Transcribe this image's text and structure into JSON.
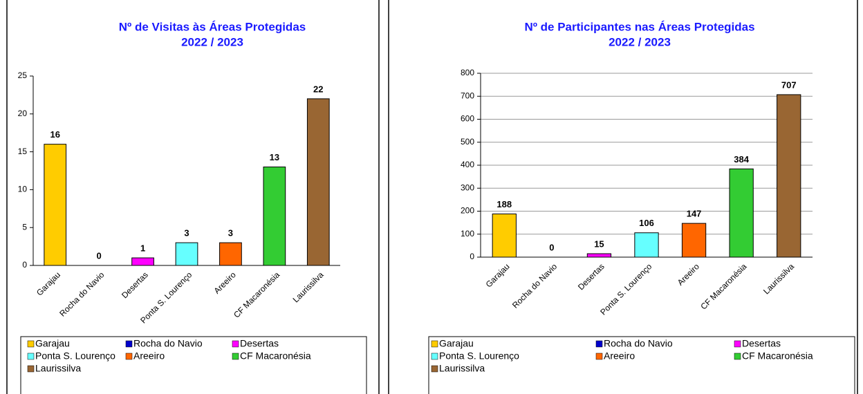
{
  "chart_data": [
    {
      "type": "bar",
      "title": "Nº de Visitas às Áreas Protegidas",
      "subtitle": "2022 / 2023",
      "categories": [
        "Garajau",
        "Rocha do Navio",
        "Desertas",
        "Ponta S. Lourenço",
        "Areeiro",
        "CF Macaronésia",
        "Laurissilva"
      ],
      "values": [
        16,
        0,
        1,
        3,
        3,
        13,
        22
      ],
      "colors": [
        "#ffcc00",
        "#0000cc",
        "#ff00ff",
        "#66ffff",
        "#ff6600",
        "#33cc33",
        "#996633"
      ],
      "ylim": [
        0,
        25
      ],
      "yticks": [
        0,
        5,
        10,
        15,
        20,
        25
      ],
      "grid": false,
      "legend": "bottom"
    },
    {
      "type": "bar",
      "title": "Nº de Participantes nas Áreas Protegidas",
      "subtitle": "2022 / 2023",
      "categories": [
        "Garajau",
        "Rocha do Navio",
        "Desertas",
        "Ponta S. Lourenço",
        "Areeiro",
        "CF Macaronésia",
        "Laurissilva"
      ],
      "values": [
        188,
        0,
        15,
        106,
        147,
        384,
        707
      ],
      "colors": [
        "#ffcc00",
        "#0000cc",
        "#ff00ff",
        "#66ffff",
        "#ff6600",
        "#33cc33",
        "#996633"
      ],
      "ylim": [
        0,
        800
      ],
      "yticks": [
        0,
        100,
        200,
        300,
        400,
        500,
        600,
        700,
        800
      ],
      "grid": true,
      "legend": "bottom"
    }
  ]
}
